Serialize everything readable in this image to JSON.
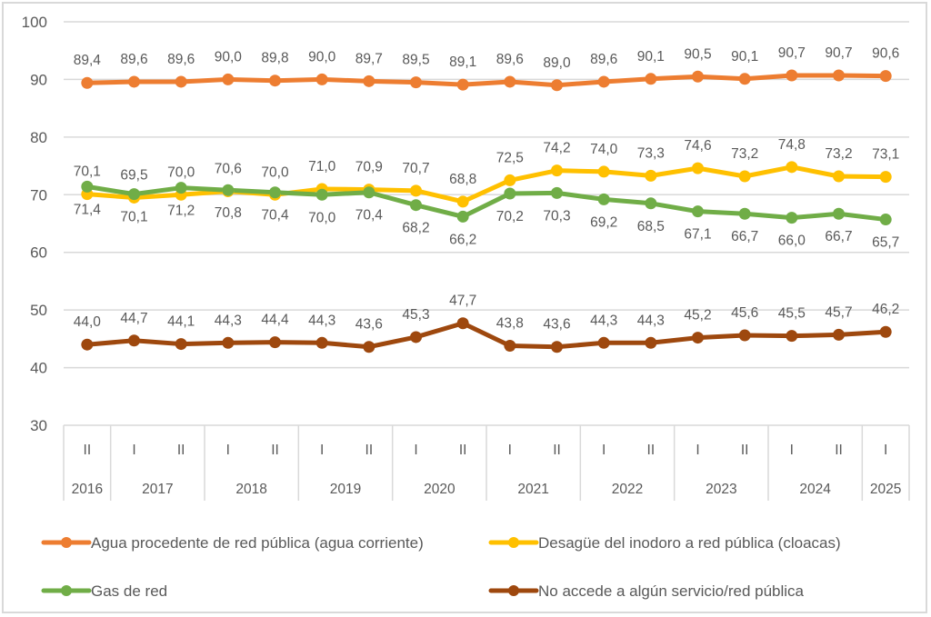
{
  "chart_data": {
    "type": "line",
    "title": "",
    "xlabel": "",
    "ylabel": "",
    "ylim": [
      30,
      100
    ],
    "yticks": [
      "30",
      "40",
      "50",
      "60",
      "70",
      "80",
      "90",
      "100"
    ],
    "grid": true,
    "legend_position": "bottom",
    "categories": [
      {
        "period": "II",
        "year": "2016"
      },
      {
        "period": "I",
        "year": "2017"
      },
      {
        "period": "II",
        "year": "2017"
      },
      {
        "period": "I",
        "year": "2018"
      },
      {
        "period": "II",
        "year": "2018"
      },
      {
        "period": "I",
        "year": "2019"
      },
      {
        "period": "II",
        "year": "2019"
      },
      {
        "period": "I",
        "year": "2020"
      },
      {
        "period": "II",
        "year": "2020"
      },
      {
        "period": "I",
        "year": "2021"
      },
      {
        "period": "II",
        "year": "2021"
      },
      {
        "period": "I",
        "year": "2022"
      },
      {
        "period": "II",
        "year": "2022"
      },
      {
        "period": "I",
        "year": "2023"
      },
      {
        "period": "II",
        "year": "2023"
      },
      {
        "period": "I",
        "year": "2024"
      },
      {
        "period": "II",
        "year": "2024"
      },
      {
        "period": "I",
        "year": "2025"
      }
    ],
    "years": [
      "2016",
      "2017",
      "2018",
      "2019",
      "2020",
      "2021",
      "2022",
      "2023",
      "2024",
      "2025"
    ],
    "series": [
      {
        "name": "Agua procedente de red pública (agua corriente)",
        "color": "#ED7D31",
        "label_position": "above",
        "values": [
          89.4,
          89.6,
          89.6,
          90.0,
          89.8,
          90.0,
          89.7,
          89.5,
          89.1,
          89.6,
          89.0,
          89.6,
          90.1,
          90.5,
          90.1,
          90.7,
          90.7,
          90.6
        ],
        "labels": [
          "89,4",
          "89,6",
          "89,6",
          "90,0",
          "89,8",
          "90,0",
          "89,7",
          "89,5",
          "89,1",
          "89,6",
          "89,0",
          "89,6",
          "90,1",
          "90,5",
          "90,1",
          "90,7",
          "90,7",
          "90,6"
        ]
      },
      {
        "name": "Desagüe del inodoro a red pública (cloacas)",
        "color": "#FFC000",
        "label_position": "above",
        "values": [
          70.1,
          69.5,
          70.0,
          70.6,
          70.0,
          71.0,
          70.9,
          70.7,
          68.8,
          72.5,
          74.2,
          74.0,
          73.3,
          74.6,
          73.2,
          74.8,
          73.2,
          73.1
        ],
        "labels": [
          "70,1",
          "69,5",
          "70,0",
          "70,6",
          "70,0",
          "71,0",
          "70,9",
          "70,7",
          "68,8",
          "72,5",
          "74,2",
          "74,0",
          "73,3",
          "74,6",
          "73,2",
          "74,8",
          "73,2",
          "73,1"
        ]
      },
      {
        "name": "Gas de red",
        "color": "#70AD47",
        "label_position": "below",
        "values": [
          71.4,
          70.1,
          71.2,
          70.8,
          70.4,
          70.0,
          70.4,
          68.2,
          66.2,
          70.2,
          70.3,
          69.2,
          68.5,
          67.1,
          66.7,
          66.0,
          66.7,
          65.7
        ],
        "labels": [
          "71,4",
          "70,1",
          "71,2",
          "70,8",
          "70,4",
          "70,0",
          "70,4",
          "68,2",
          "66,2",
          "70,2",
          "70,3",
          "69,2",
          "68,5",
          "67,1",
          "66,7",
          "66,0",
          "66,7",
          "65,7"
        ]
      },
      {
        "name": "No accede a algún servicio/red pública",
        "color": "#9E480E",
        "label_position": "above",
        "values": [
          44.0,
          44.7,
          44.1,
          44.3,
          44.4,
          44.3,
          43.6,
          45.3,
          47.7,
          43.8,
          43.6,
          44.3,
          44.3,
          45.2,
          45.6,
          45.5,
          45.7,
          46.2
        ],
        "labels": [
          "44,0",
          "44,7",
          "44,1",
          "44,3",
          "44,4",
          "44,3",
          "43,6",
          "45,3",
          "47,7",
          "43,8",
          "43,6",
          "44,3",
          "44,3",
          "45,2",
          "45,6",
          "45,5",
          "45,7",
          "46,2"
        ]
      }
    ],
    "legend": [
      {
        "label": "Agua procedente de red pública (agua corriente)",
        "color": "#ED7D31"
      },
      {
        "label": "Desagüe del inodoro a red pública (cloacas)",
        "color": "#FFC000"
      },
      {
        "label": "Gas de red",
        "color": "#70AD47"
      },
      {
        "label": "No accede a algún servicio/red pública",
        "color": "#9E480E"
      }
    ]
  }
}
